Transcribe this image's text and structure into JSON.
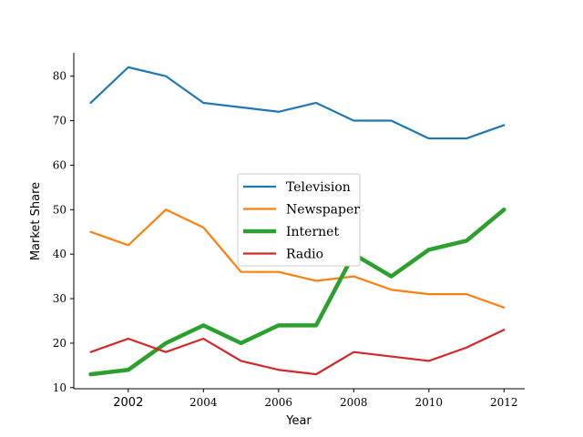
{
  "chart_data": {
    "type": "line",
    "xlabel": "Year",
    "ylabel": "Market Share",
    "x": [
      2001,
      2002,
      2003,
      2004,
      2005,
      2006,
      2007,
      2008,
      2009,
      2010,
      2011,
      2012
    ],
    "xlim": [
      2000.55,
      2012.55
    ],
    "ylim": [
      9.75,
      85.25
    ],
    "x_ticks": [
      {
        "value": 2002,
        "label": "2002",
        "font": "sans"
      },
      {
        "value": 2004,
        "label": "2004",
        "font": "serif"
      },
      {
        "value": 2006,
        "label": "2006",
        "font": "serif"
      },
      {
        "value": 2008,
        "label": "2008",
        "font": "serif"
      },
      {
        "value": 2010,
        "label": "2010",
        "font": "serif"
      },
      {
        "value": 2012,
        "label": "2012",
        "font": "serif"
      }
    ],
    "y_ticks": [
      {
        "value": 10,
        "label": "10"
      },
      {
        "value": 20,
        "label": "20"
      },
      {
        "value": 30,
        "label": "30"
      },
      {
        "value": 40,
        "label": "40"
      },
      {
        "value": 50,
        "label": "50"
      },
      {
        "value": 60,
        "label": "60"
      },
      {
        "value": 70,
        "label": "70"
      },
      {
        "value": 80,
        "label": "80"
      }
    ],
    "grid": false,
    "legend_position": "center",
    "series": [
      {
        "name": "Television",
        "color": "#1f77b4",
        "emphasis": false,
        "values": [
          74,
          82,
          80,
          74,
          73,
          72,
          74,
          70,
          70,
          66,
          66,
          69
        ]
      },
      {
        "name": "Newspaper",
        "color": "#ff7f0e",
        "emphasis": false,
        "values": [
          45,
          42,
          50,
          46,
          36,
          36,
          34,
          35,
          32,
          31,
          31,
          28
        ]
      },
      {
        "name": "Internet",
        "color": "#2ca02c",
        "emphasis": true,
        "values": [
          13,
          14,
          20,
          24,
          20,
          24,
          24,
          40,
          35,
          41,
          43,
          50
        ]
      },
      {
        "name": "Radio",
        "color": "#d62728",
        "emphasis": false,
        "values": [
          18,
          21,
          18,
          21,
          16,
          14,
          13,
          18,
          17,
          16,
          19,
          23
        ]
      }
    ]
  }
}
